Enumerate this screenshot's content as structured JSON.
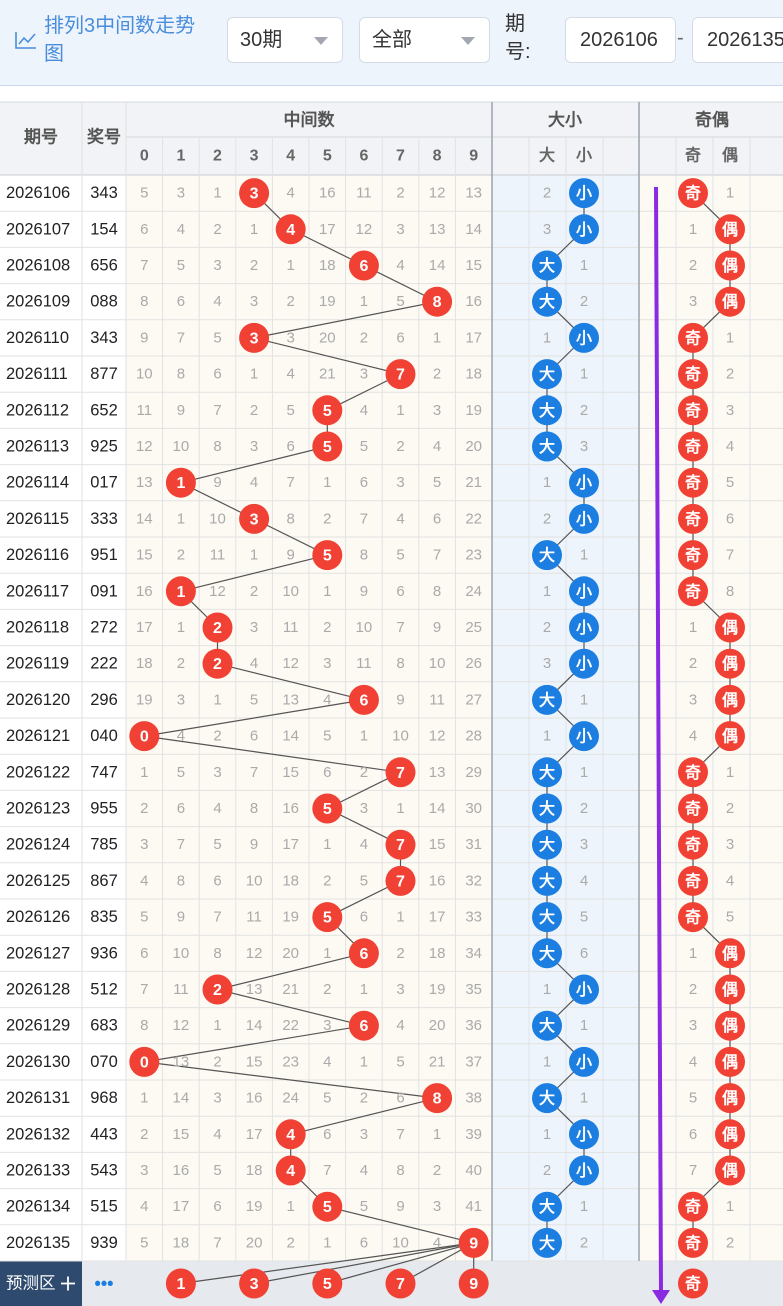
{
  "header": {
    "title": "排列3中间数走势图",
    "period_select": "30期",
    "range_select": "全部",
    "period_label": "期号:",
    "start_period": "2026106",
    "end_period": "2026135"
  },
  "table": {
    "col_period": "期号",
    "col_number": "奖号",
    "group_middle": "中间数",
    "group_size": "大小",
    "group_parity": "奇偶",
    "digit_headers": [
      "0",
      "1",
      "2",
      "3",
      "4",
      "5",
      "6",
      "7",
      "8",
      "9"
    ],
    "size_headers": [
      "大",
      "小"
    ],
    "parity_headers": [
      "奇",
      "偶"
    ],
    "rows": [
      {
        "period": "2026106",
        "number": "343",
        "middle": 3,
        "cells": [
          "5",
          "3",
          "1",
          "3",
          "4",
          "16",
          "11",
          "2",
          "12",
          "13"
        ],
        "size": "小",
        "size_miss": "2",
        "parity": "奇",
        "parity_miss": "1"
      },
      {
        "period": "2026107",
        "number": "154",
        "middle": 4,
        "cells": [
          "6",
          "4",
          "2",
          "1",
          "4",
          "17",
          "12",
          "3",
          "13",
          "14"
        ],
        "size": "小",
        "size_miss": "3",
        "parity": "偶",
        "parity_miss": "1"
      },
      {
        "period": "2026108",
        "number": "656",
        "middle": 6,
        "cells": [
          "7",
          "5",
          "3",
          "2",
          "1",
          "18",
          "6",
          "4",
          "14",
          "15"
        ],
        "size": "大",
        "size_miss": "1",
        "parity": "偶",
        "parity_miss": "2"
      },
      {
        "period": "2026109",
        "number": "088",
        "middle": 8,
        "cells": [
          "8",
          "6",
          "4",
          "3",
          "2",
          "19",
          "1",
          "5",
          "8",
          "16"
        ],
        "size": "大",
        "size_miss": "2",
        "parity": "偶",
        "parity_miss": "3"
      },
      {
        "period": "2026110",
        "number": "343",
        "middle": 3,
        "cells": [
          "9",
          "7",
          "5",
          "3",
          "3",
          "20",
          "2",
          "6",
          "1",
          "17"
        ],
        "size": "小",
        "size_miss": "1",
        "parity": "奇",
        "parity_miss": "1"
      },
      {
        "period": "2026111",
        "number": "877",
        "middle": 7,
        "cells": [
          "10",
          "8",
          "6",
          "1",
          "4",
          "21",
          "3",
          "7",
          "2",
          "18"
        ],
        "size": "大",
        "size_miss": "1",
        "parity": "奇",
        "parity_miss": "2"
      },
      {
        "period": "2026112",
        "number": "652",
        "middle": 5,
        "cells": [
          "11",
          "9",
          "7",
          "2",
          "5",
          "5",
          "4",
          "1",
          "3",
          "19"
        ],
        "size": "大",
        "size_miss": "2",
        "parity": "奇",
        "parity_miss": "3"
      },
      {
        "period": "2026113",
        "number": "925",
        "middle": 5,
        "cells": [
          "12",
          "10",
          "8",
          "3",
          "6",
          "5",
          "5",
          "2",
          "4",
          "20"
        ],
        "size": "大",
        "size_miss": "3",
        "parity": "奇",
        "parity_miss": "4"
      },
      {
        "period": "2026114",
        "number": "017",
        "middle": 1,
        "cells": [
          "13",
          "1",
          "9",
          "4",
          "7",
          "1",
          "6",
          "3",
          "5",
          "21"
        ],
        "size": "小",
        "size_miss": "1",
        "parity": "奇",
        "parity_miss": "5"
      },
      {
        "period": "2026115",
        "number": "333",
        "middle": 3,
        "cells": [
          "14",
          "1",
          "10",
          "3",
          "8",
          "2",
          "7",
          "4",
          "6",
          "22"
        ],
        "size": "小",
        "size_miss": "2",
        "parity": "奇",
        "parity_miss": "6"
      },
      {
        "period": "2026116",
        "number": "951",
        "middle": 5,
        "cells": [
          "15",
          "2",
          "11",
          "1",
          "9",
          "5",
          "8",
          "5",
          "7",
          "23"
        ],
        "size": "大",
        "size_miss": "1",
        "parity": "奇",
        "parity_miss": "7"
      },
      {
        "period": "2026117",
        "number": "091",
        "middle": 1,
        "cells": [
          "16",
          "1",
          "12",
          "2",
          "10",
          "1",
          "9",
          "6",
          "8",
          "24"
        ],
        "size": "小",
        "size_miss": "1",
        "parity": "奇",
        "parity_miss": "8"
      },
      {
        "period": "2026118",
        "number": "272",
        "middle": 2,
        "cells": [
          "17",
          "1",
          "2",
          "3",
          "11",
          "2",
          "10",
          "7",
          "9",
          "25"
        ],
        "size": "小",
        "size_miss": "2",
        "parity": "偶",
        "parity_miss": "1"
      },
      {
        "period": "2026119",
        "number": "222",
        "middle": 2,
        "cells": [
          "18",
          "2",
          "2",
          "4",
          "12",
          "3",
          "11",
          "8",
          "10",
          "26"
        ],
        "size": "小",
        "size_miss": "3",
        "parity": "偶",
        "parity_miss": "2"
      },
      {
        "period": "2026120",
        "number": "296",
        "middle": 6,
        "cells": [
          "19",
          "3",
          "1",
          "5",
          "13",
          "4",
          "6",
          "9",
          "11",
          "27"
        ],
        "size": "大",
        "size_miss": "1",
        "parity": "偶",
        "parity_miss": "3"
      },
      {
        "period": "2026121",
        "number": "040",
        "middle": 0,
        "cells": [
          "0",
          "4",
          "2",
          "6",
          "14",
          "5",
          "1",
          "10",
          "12",
          "28"
        ],
        "size": "小",
        "size_miss": "1",
        "parity": "偶",
        "parity_miss": "4"
      },
      {
        "period": "2026122",
        "number": "747",
        "middle": 7,
        "cells": [
          "1",
          "5",
          "3",
          "7",
          "15",
          "6",
          "2",
          "7",
          "13",
          "29"
        ],
        "size": "大",
        "size_miss": "1",
        "parity": "奇",
        "parity_miss": "1"
      },
      {
        "period": "2026123",
        "number": "955",
        "middle": 5,
        "cells": [
          "2",
          "6",
          "4",
          "8",
          "16",
          "5",
          "3",
          "1",
          "14",
          "30"
        ],
        "size": "大",
        "size_miss": "2",
        "parity": "奇",
        "parity_miss": "2"
      },
      {
        "period": "2026124",
        "number": "785",
        "middle": 7,
        "cells": [
          "3",
          "7",
          "5",
          "9",
          "17",
          "1",
          "4",
          "7",
          "15",
          "31"
        ],
        "size": "大",
        "size_miss": "3",
        "parity": "奇",
        "parity_miss": "3"
      },
      {
        "period": "2026125",
        "number": "867",
        "middle": 7,
        "cells": [
          "4",
          "8",
          "6",
          "10",
          "18",
          "2",
          "5",
          "7",
          "16",
          "32"
        ],
        "size": "大",
        "size_miss": "4",
        "parity": "奇",
        "parity_miss": "4"
      },
      {
        "period": "2026126",
        "number": "835",
        "middle": 5,
        "cells": [
          "5",
          "9",
          "7",
          "11",
          "19",
          "5",
          "6",
          "1",
          "17",
          "33"
        ],
        "size": "大",
        "size_miss": "5",
        "parity": "奇",
        "parity_miss": "5"
      },
      {
        "period": "2026127",
        "number": "936",
        "middle": 6,
        "cells": [
          "6",
          "10",
          "8",
          "12",
          "20",
          "1",
          "6",
          "2",
          "18",
          "34"
        ],
        "size": "大",
        "size_miss": "6",
        "parity": "偶",
        "parity_miss": "1"
      },
      {
        "period": "2026128",
        "number": "512",
        "middle": 2,
        "cells": [
          "7",
          "11",
          "2",
          "13",
          "21",
          "2",
          "1",
          "3",
          "19",
          "35"
        ],
        "size": "小",
        "size_miss": "1",
        "parity": "偶",
        "parity_miss": "2"
      },
      {
        "period": "2026129",
        "number": "683",
        "middle": 6,
        "cells": [
          "8",
          "12",
          "1",
          "14",
          "22",
          "3",
          "6",
          "4",
          "20",
          "36"
        ],
        "size": "大",
        "size_miss": "1",
        "parity": "偶",
        "parity_miss": "3"
      },
      {
        "period": "2026130",
        "number": "070",
        "middle": 0,
        "cells": [
          "0",
          "13",
          "2",
          "15",
          "23",
          "4",
          "1",
          "5",
          "21",
          "37"
        ],
        "size": "小",
        "size_miss": "1",
        "parity": "偶",
        "parity_miss": "4"
      },
      {
        "period": "2026131",
        "number": "968",
        "middle": 8,
        "cells": [
          "1",
          "14",
          "3",
          "16",
          "24",
          "5",
          "2",
          "6",
          "8",
          "38"
        ],
        "size": "大",
        "size_miss": "1",
        "parity": "偶",
        "parity_miss": "5"
      },
      {
        "period": "2026132",
        "number": "443",
        "middle": 4,
        "cells": [
          "2",
          "15",
          "4",
          "17",
          "4",
          "6",
          "3",
          "7",
          "1",
          "39"
        ],
        "size": "小",
        "size_miss": "1",
        "parity": "偶",
        "parity_miss": "6"
      },
      {
        "period": "2026133",
        "number": "543",
        "middle": 4,
        "cells": [
          "3",
          "16",
          "5",
          "18",
          "4",
          "7",
          "4",
          "8",
          "2",
          "40"
        ],
        "size": "小",
        "size_miss": "2",
        "parity": "偶",
        "parity_miss": "7"
      },
      {
        "period": "2026134",
        "number": "515",
        "middle": 5,
        "cells": [
          "4",
          "17",
          "6",
          "19",
          "1",
          "5",
          "5",
          "9",
          "3",
          "41"
        ],
        "size": "大",
        "size_miss": "1",
        "parity": "奇",
        "parity_miss": "1"
      },
      {
        "period": "2026135",
        "number": "939",
        "middle": 9,
        "cells": [
          "5",
          "18",
          "7",
          "20",
          "2",
          "1",
          "6",
          "10",
          "4",
          "9"
        ],
        "size": "大",
        "size_miss": "2",
        "parity": "奇",
        "parity_miss": "2"
      }
    ]
  },
  "prediction": {
    "label": "预测区",
    "plus_icon": "plus-icon",
    "more_label": "•••",
    "digits": [
      1,
      3,
      5,
      7,
      9
    ],
    "parity": "奇"
  },
  "colors": {
    "ball_red": "#f04134",
    "ball_blue": "#1b7ee0",
    "arrow_purple": "#8a2be2",
    "header_bg": "#eef4fc",
    "title_blue": "#4a8ddc"
  }
}
